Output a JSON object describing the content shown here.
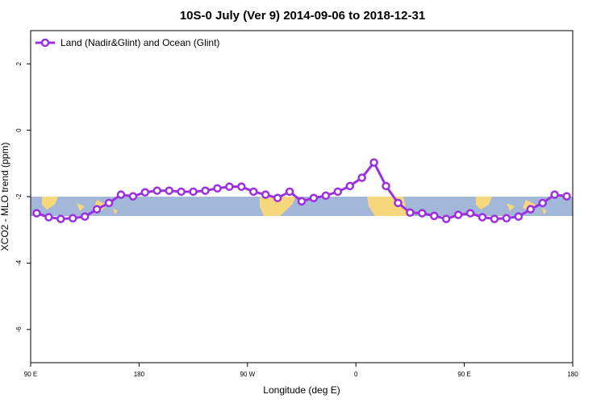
{
  "chart_data": {
    "type": "line",
    "title": "10S-0 July (Ver 9)   2014-09-06 to 2018-12-31",
    "x_label": "Longitude (deg E)",
    "y_label": "XCO2 - MLO trend (ppm)",
    "xlim": [
      90,
      540
    ],
    "ylim": [
      -7,
      3
    ],
    "xticks": [
      {
        "value": 90,
        "label": "90 E"
      },
      {
        "value": 180,
        "label": "180"
      },
      {
        "value": 270,
        "label": "90 W"
      },
      {
        "value": 360,
        "label": "0"
      },
      {
        "value": 450,
        "label": "90 E"
      },
      {
        "value": 540,
        "label": "180"
      }
    ],
    "yticks": [
      2,
      0,
      -2,
      -4,
      -6
    ],
    "legend": "top-left",
    "x": [
      95,
      105,
      115,
      125,
      135,
      145,
      155,
      165,
      175,
      185,
      195,
      205,
      215,
      225,
      235,
      245,
      255,
      265,
      275,
      285,
      295,
      305,
      315,
      325,
      335,
      345,
      355,
      365,
      375,
      385,
      395,
      405,
      415,
      425,
      435,
      445,
      455,
      465,
      475,
      485,
      495,
      505,
      515,
      525,
      535
    ],
    "series": [
      {
        "name": "Land (Nadir&Glint) and Ocean (Glint)",
        "color": "#9b30e0",
        "values": [
          -2.5,
          -2.62,
          -2.67,
          -2.65,
          -2.6,
          -2.38,
          -2.19,
          -1.94,
          -1.99,
          -1.87,
          -1.82,
          -1.82,
          -1.85,
          -1.85,
          -1.82,
          -1.75,
          -1.7,
          -1.7,
          -1.85,
          -1.94,
          -2.04,
          -1.85,
          -2.14,
          -2.04,
          -1.97,
          -1.85,
          -1.68,
          -1.43,
          -0.97,
          -1.68,
          -2.19,
          -2.48,
          -2.5,
          -2.58,
          -2.67,
          -2.55,
          -2.5,
          -2.62,
          -2.67,
          -2.65,
          -2.6,
          -2.38,
          -2.19,
          -1.94,
          -1.99
        ]
      }
    ]
  }
}
